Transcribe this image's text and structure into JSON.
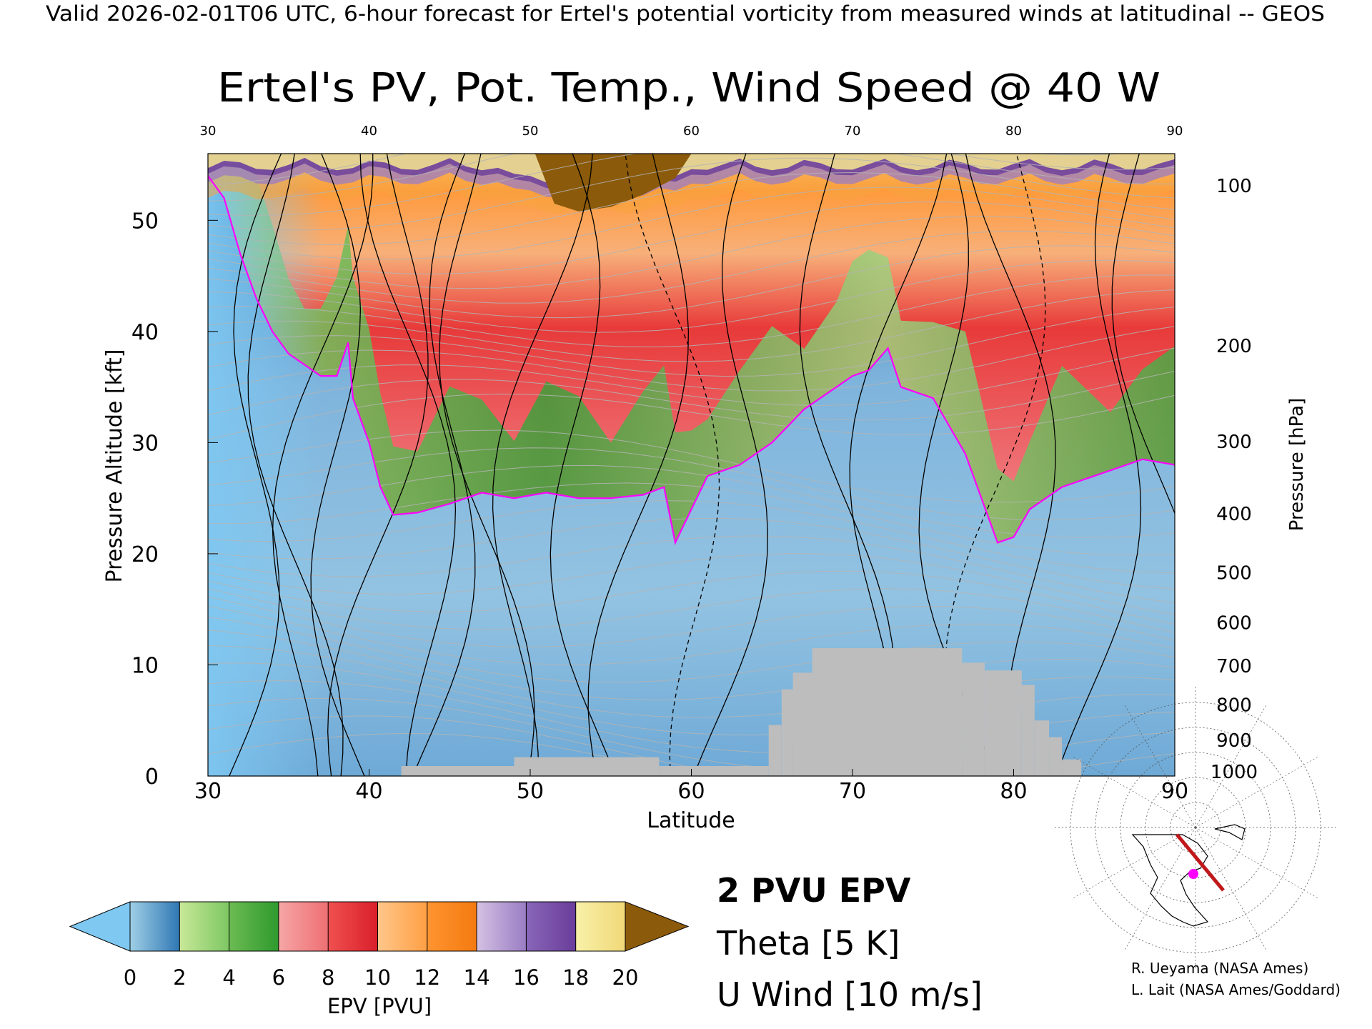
{
  "header": {
    "top_line": "Valid 2026-02-01T06 UTC, 6-hour forecast for Ertel's potential vorticity from measured winds at latitudinal -- GEOS",
    "title": "Ertel's PV, Pot. Temp., Wind Speed @ 40 W"
  },
  "chart_data": {
    "type": "heatmap",
    "title": "Ertel's PV, Pot. Temp., Wind Speed @ 40 W",
    "xlabel": "Latitude",
    "ylabel_left": "Pressure Altitude [kft]",
    "ylabel_right": "Pressure [hPa]",
    "xlim": [
      30,
      90
    ],
    "ylim": [
      0,
      56
    ],
    "x_ticks": [
      "30",
      "40",
      "50",
      "60",
      "70",
      "80",
      "90"
    ],
    "y_ticks": [
      "0",
      "10",
      "20",
      "30",
      "40",
      "50"
    ],
    "pressure_ticks": [
      {
        "hpa": "100",
        "kft": 53.1
      },
      {
        "hpa": "200",
        "kft": 38.7
      },
      {
        "hpa": "300",
        "kft": 30.1
      },
      {
        "hpa": "400",
        "kft": 23.6
      },
      {
        "hpa": "500",
        "kft": 18.3
      },
      {
        "hpa": "600",
        "kft": 13.8
      },
      {
        "hpa": "700",
        "kft": 9.9
      },
      {
        "hpa": "800",
        "kft": 6.4
      },
      {
        "hpa": "900",
        "kft": 3.2
      },
      {
        "hpa": "1000",
        "kft": 0.4
      }
    ],
    "pv2_tropopause": [
      {
        "lat": 30,
        "kft": 54
      },
      {
        "lat": 31,
        "kft": 52
      },
      {
        "lat": 32,
        "kft": 47
      },
      {
        "lat": 33,
        "kft": 43
      },
      {
        "lat": 34,
        "kft": 40
      },
      {
        "lat": 35,
        "kft": 38
      },
      {
        "lat": 36,
        "kft": 37
      },
      {
        "lat": 37,
        "kft": 36
      },
      {
        "lat": 38,
        "kft": 36
      },
      {
        "lat": 38.7,
        "kft": 39
      },
      {
        "lat": 39,
        "kft": 34
      },
      {
        "lat": 40,
        "kft": 30
      },
      {
        "lat": 40.7,
        "kft": 26
      },
      {
        "lat": 41.5,
        "kft": 23.5
      },
      {
        "lat": 43,
        "kft": 23.7
      },
      {
        "lat": 45,
        "kft": 24.5
      },
      {
        "lat": 47,
        "kft": 25.5
      },
      {
        "lat": 49,
        "kft": 25
      },
      {
        "lat": 51,
        "kft": 25.5
      },
      {
        "lat": 53,
        "kft": 25
      },
      {
        "lat": 55,
        "kft": 25
      },
      {
        "lat": 57,
        "kft": 25.3
      },
      {
        "lat": 58.3,
        "kft": 26
      },
      {
        "lat": 59,
        "kft": 21
      },
      {
        "lat": 60,
        "kft": 24
      },
      {
        "lat": 61,
        "kft": 27
      },
      {
        "lat": 63,
        "kft": 28
      },
      {
        "lat": 65,
        "kft": 30
      },
      {
        "lat": 67,
        "kft": 33
      },
      {
        "lat": 69,
        "kft": 35
      },
      {
        "lat": 70,
        "kft": 36
      },
      {
        "lat": 71,
        "kft": 36.5
      },
      {
        "lat": 72.2,
        "kft": 38.5
      },
      {
        "lat": 73,
        "kft": 35
      },
      {
        "lat": 75,
        "kft": 34
      },
      {
        "lat": 77,
        "kft": 29
      },
      {
        "lat": 79,
        "kft": 21
      },
      {
        "lat": 80,
        "kft": 21.5
      },
      {
        "lat": 81,
        "kft": 24
      },
      {
        "lat": 83,
        "kft": 26
      },
      {
        "lat": 86,
        "kft": 27.5
      },
      {
        "lat": 88,
        "kft": 28.5
      },
      {
        "lat": 90,
        "kft": 28
      }
    ],
    "terrain_blocks_kft": [
      {
        "lat0": 42,
        "lat1": 49,
        "top": 0.9
      },
      {
        "lat0": 49,
        "lat1": 58,
        "top": 1.7
      },
      {
        "lat0": 58,
        "lat1": 64.8,
        "top": 0.9
      },
      {
        "lat0": 64.8,
        "lat1": 65.6,
        "top": 4.6
      },
      {
        "lat0": 65.6,
        "lat1": 66.3,
        "top": 7.8
      },
      {
        "lat0": 66.3,
        "lat1": 67.5,
        "top": 9.3
      },
      {
        "lat0": 67.5,
        "lat1": 76.8,
        "top": 11.5
      },
      {
        "lat0": 76.8,
        "lat1": 78.2,
        "top": 10.2
      },
      {
        "lat0": 78.2,
        "lat1": 80.5,
        "top": 9.5
      },
      {
        "lat0": 80.5,
        "lat1": 81.3,
        "top": 8.2
      },
      {
        "lat0": 81.3,
        "lat1": 82.2,
        "top": 5.0
      },
      {
        "lat0": 82.2,
        "lat1": 83.0,
        "top": 3.5
      },
      {
        "lat0": 83.0,
        "lat1": 84.2,
        "top": 1.5
      }
    ],
    "colorbar": {
      "label": "EPV [PVU]",
      "ticks": [
        "0",
        "2",
        "4",
        "6",
        "8",
        "10",
        "12",
        "14",
        "16",
        "18",
        "20"
      ],
      "bins": [
        {
          "from": 0,
          "to": 2,
          "colors": [
            "#9fcfe6",
            "#2f77b4"
          ]
        },
        {
          "from": 2,
          "to": 4,
          "colors": [
            "#c8e898",
            "#7dc763"
          ]
        },
        {
          "from": 4,
          "to": 6,
          "colors": [
            "#6cbb52",
            "#2e9a2e"
          ]
        },
        {
          "from": 6,
          "to": 8,
          "colors": [
            "#f6a6a6",
            "#ee6f73"
          ]
        },
        {
          "from": 8,
          "to": 10,
          "colors": [
            "#f05050",
            "#d9202a"
          ]
        },
        {
          "from": 10,
          "to": 12,
          "colors": [
            "#ffc78a",
            "#ff9f45"
          ]
        },
        {
          "from": 12,
          "to": 14,
          "colors": [
            "#ff9430",
            "#f47a10"
          ]
        },
        {
          "from": 14,
          "to": 16,
          "colors": [
            "#d4c2e2",
            "#9a7cc4"
          ]
        },
        {
          "from": 16,
          "to": 18,
          "colors": [
            "#8866b8",
            "#6a3d9a"
          ]
        },
        {
          "from": 18,
          "to": 20,
          "colors": [
            "#f8f1a8",
            "#f0d878"
          ]
        }
      ],
      "under_color": "#7ec8f2",
      "over_color": "#8b5a0a"
    },
    "legend": [
      {
        "label": "2 PVU EPV",
        "color": "#ff00ff"
      },
      {
        "label": "Theta [5 K]",
        "color": "#b4b4b4"
      },
      {
        "label": "U Wind [10 m/s]",
        "color": "#000000"
      }
    ]
  },
  "credits": [
    "R. Ueyama (NASA Ames)",
    "L. Lait (NASA Ames/Goddard)"
  ],
  "inset_map": {
    "track_color": "#c0181a",
    "marker_color": "#ff00ff"
  },
  "colors": {
    "terrain": "#bdbdbd",
    "pv2": "#ff00ff",
    "theta": "#b4b4b4",
    "wind": "#000000"
  }
}
